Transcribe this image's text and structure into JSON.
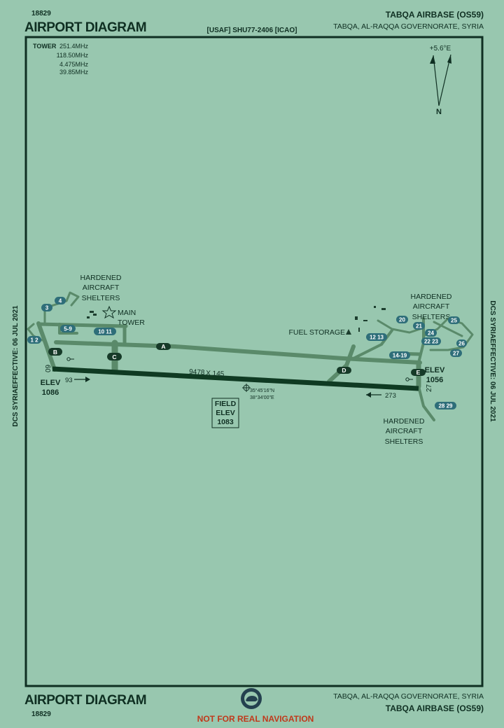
{
  "header": {
    "chart_number": "18829",
    "title": "AIRPORT DIAGRAM",
    "center_ref": "[USAF] SHU77-2406 [ICAO]",
    "airport_name": "TABQA AIRBASE (OS59)",
    "location": "TABQA, AL-RAQQA GOVERNORATE, SYRIA"
  },
  "footer": {
    "title": "AIRPORT DIAGRAM",
    "chart_number": "18829",
    "location": "TABQA, AL-RAQQA GOVERNORATE, SYRIA",
    "airport_name": "TABQA AIRBASE (OS59)",
    "warning": "NOT FOR REAL NAVIGATION"
  },
  "side_labels": {
    "left": "DCS SYRIAEFFECTIVE: 06 JUL 2021",
    "right": "DCS SYRIAEFFECTIVE: 06 JUL 2021"
  },
  "frequencies": {
    "label": "TOWER",
    "values": [
      "251.4MHz",
      "118.50MHz",
      "4.475MHz",
      "39.85MHz"
    ]
  },
  "north_arrow": {
    "variation": "+5.6°E",
    "north": "N"
  },
  "runway": {
    "dimensions": "9478",
    "width": "X 145",
    "end_west": "09",
    "end_east": "27",
    "heading_west": "93",
    "heading_east": "273"
  },
  "elevations": {
    "west_label": "ELEV",
    "west_value": "1086",
    "east_label": "ELEV",
    "east_value": "1056",
    "field_l1": "FIELD",
    "field_l2": "ELEV",
    "field_value": "1083"
  },
  "ref_point": {
    "lat": "35°45'16\"N",
    "lon": "38°34'00\"E"
  },
  "area_labels": {
    "has_west_l1": "HARDENED",
    "has_west_l2": "AIRCRAFT",
    "has_west_l3": "SHELTERS",
    "has_east_l1": "HARDENED",
    "has_east_l2": "AIRCRAFT",
    "has_east_l3": "SHELTERS",
    "has_se_l1": "HARDENED",
    "has_se_l2": "AIRCRAFT",
    "has_se_l3": "SHELTERS",
    "main_tower_l1": "MAIN",
    "main_tower_l2": "TOWER",
    "fuel_storage": "FUEL STORAGE"
  },
  "taxiways": [
    "A",
    "B",
    "C",
    "D",
    "E"
  ],
  "parking_spots": {
    "west": [
      "3",
      "4",
      "5-9",
      "10 11",
      "1 2"
    ],
    "east": [
      "20",
      "21",
      "12 13",
      "25",
      "24",
      "22 23",
      "26",
      "27",
      "14-19",
      "28 29"
    ]
  },
  "colors": {
    "background": "#98c7af",
    "ink": "#0f2f22",
    "taxiway": "#5a8a6a",
    "runway": "#0f3a22",
    "spot": "#2e6e79",
    "warning": "#c0391b"
  }
}
